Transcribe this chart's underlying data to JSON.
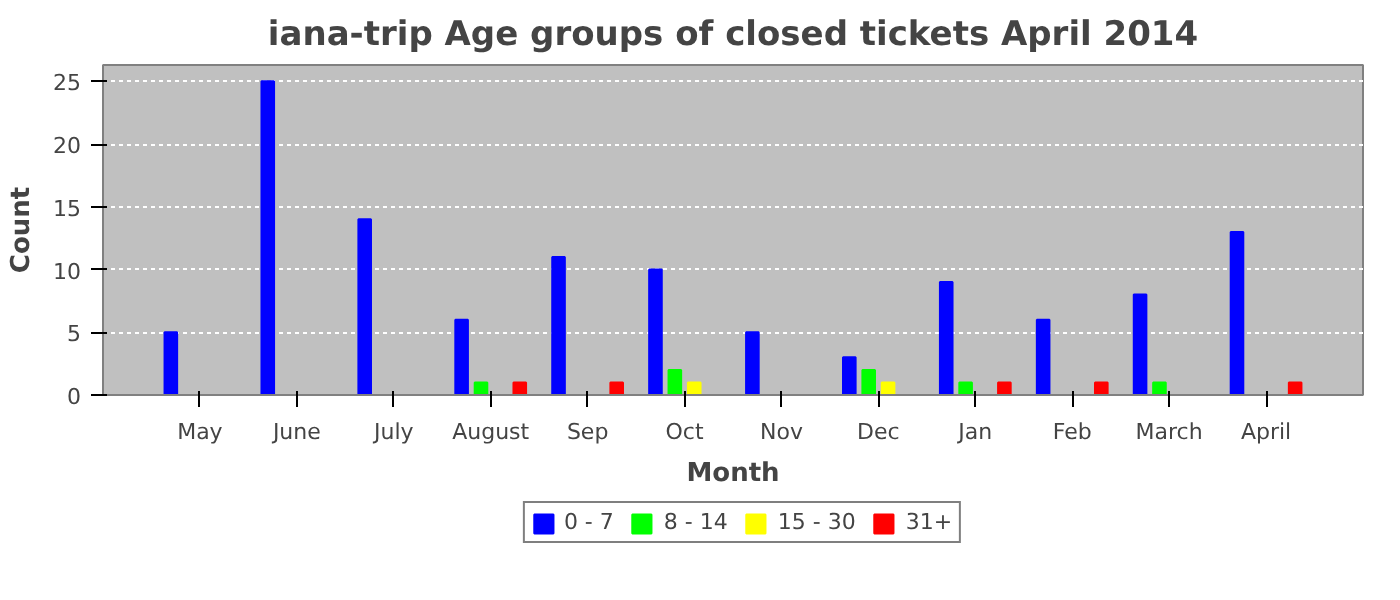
{
  "chart_data": {
    "type": "bar",
    "title": "iana-trip Age groups of closed tickets April 2014",
    "xlabel": "Month",
    "ylabel": "Count",
    "categories": [
      "May",
      "June",
      "July",
      "August",
      "Sep",
      "Oct",
      "Nov",
      "Dec",
      "Jan",
      "Feb",
      "March",
      "April"
    ],
    "series": [
      {
        "name": "0 - 7",
        "color": "#0000ff",
        "values": [
          5,
          25,
          14,
          6,
          11,
          10,
          5,
          3,
          9,
          6,
          8,
          13
        ]
      },
      {
        "name": "8 - 14",
        "color": "#00ff00",
        "values": [
          0,
          0,
          0,
          1,
          0,
          2,
          0,
          2,
          1,
          0,
          1,
          0
        ]
      },
      {
        "name": "15 - 30",
        "color": "#ffff00",
        "values": [
          0,
          0,
          0,
          0,
          0,
          1,
          0,
          1,
          0,
          0,
          0,
          0
        ]
      },
      {
        "name": "31+",
        "color": "#ff0000",
        "values": [
          0,
          0,
          0,
          1,
          1,
          0,
          0,
          0,
          1,
          1,
          0,
          1
        ]
      }
    ],
    "ylim": [
      0,
      26.3
    ],
    "yticks": [
      0,
      5,
      10,
      15,
      20,
      25
    ],
    "grid": "y",
    "legend": "bottom"
  }
}
